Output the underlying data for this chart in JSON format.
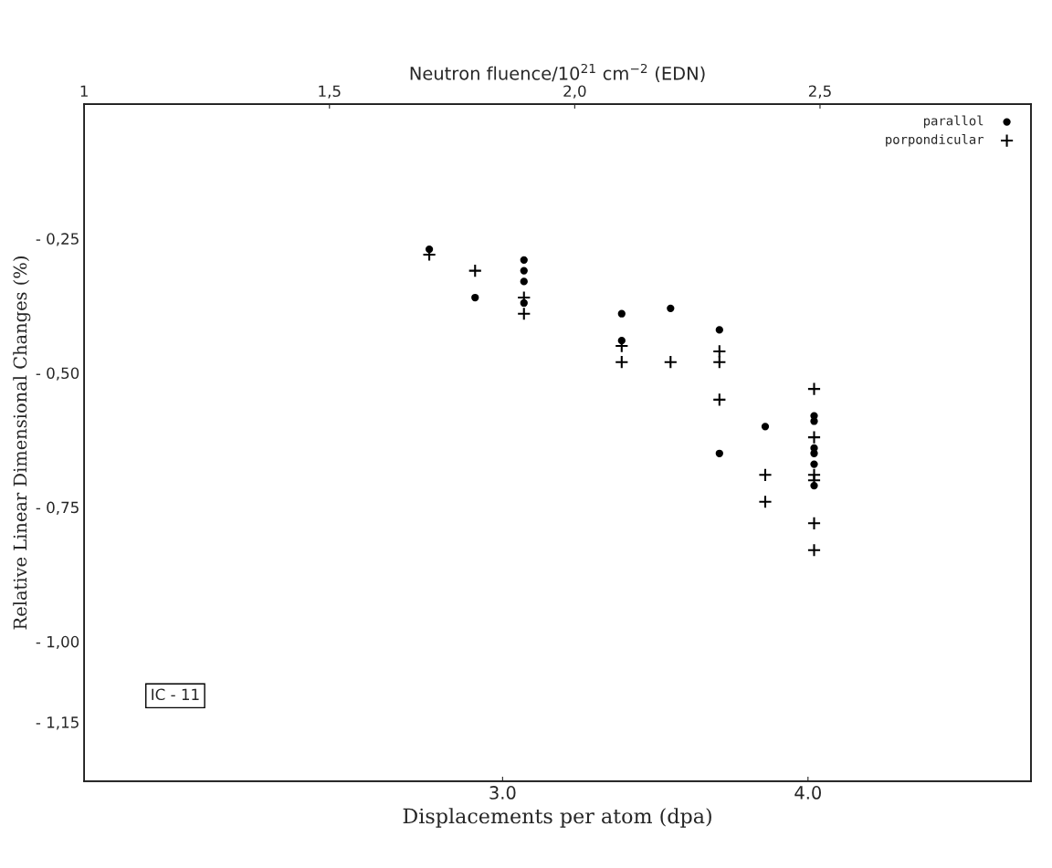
{
  "chart_data": {
    "type": "scatter",
    "xlabel": "Displacements per atom (dpa)",
    "ylabel": "Relative Linear Dimensional Changes (%)",
    "x2label": "Neutron fluence/10$^{21}$ cm$^{−2}$ (EDN)",
    "xlim": [
      1.63,
      4.73
    ],
    "xticks": [
      {
        "value": 3,
        "label": "3.0"
      },
      {
        "value": 4,
        "label": "4.0"
      }
    ],
    "x2lim": [
      1.0,
      2.93
    ],
    "x2ticks": [
      {
        "value": 1.0,
        "label": "1"
      },
      {
        "value": 1.5,
        "label": "1,5"
      },
      {
        "value": 2.0,
        "label": "2,0"
      },
      {
        "value": 2.5,
        "label": "2,5"
      }
    ],
    "ylim": [
      -1.26,
      0
    ],
    "yticks": [
      {
        "value": -0.25,
        "label": "- 0,25"
      },
      {
        "value": -0.5,
        "label": "- 0,50"
      },
      {
        "value": -0.75,
        "label": "- 0,75"
      },
      {
        "value": -1.0,
        "label": "- 1,00"
      },
      {
        "value": -1.15,
        "label": "- 1,15"
      }
    ],
    "grid": false,
    "legend": "top right",
    "annotations": [
      "IC - 11"
    ],
    "series": [
      {
        "name": "parallol",
        "color": "#000000",
        "marker": "circle",
        "x": [
          2.76,
          2.91,
          3.07,
          3.07,
          3.07,
          3.07,
          3.39,
          3.39,
          3.55,
          3.71,
          3.71,
          3.86,
          4.02,
          4.02,
          4.02,
          4.02,
          4.02,
          4.02
        ],
        "values": [
          -0.27,
          -0.36,
          -0.29,
          -0.31,
          -0.33,
          -0.37,
          -0.39,
          -0.44,
          -0.38,
          -0.42,
          -0.65,
          -0.6,
          -0.58,
          -0.59,
          -0.64,
          -0.65,
          -0.67,
          -0.71
        ]
      },
      {
        "name": "porpondicular",
        "color": "#000000",
        "marker": "cross",
        "x": [
          2.76,
          2.91,
          3.07,
          3.07,
          3.39,
          3.39,
          3.55,
          3.71,
          3.71,
          3.71,
          3.86,
          3.86,
          4.02,
          4.02,
          4.02,
          4.02,
          4.02,
          4.02
        ],
        "values": [
          -0.28,
          -0.31,
          -0.36,
          -0.39,
          -0.45,
          -0.48,
          -0.48,
          -0.46,
          -0.48,
          -0.55,
          -0.69,
          -0.74,
          -0.53,
          -0.62,
          -0.69,
          -0.7,
          -0.78,
          -0.83
        ]
      }
    ]
  }
}
